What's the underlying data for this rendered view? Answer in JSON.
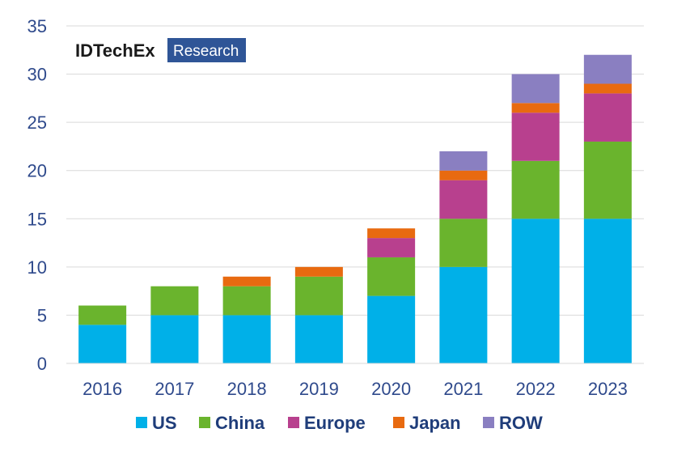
{
  "chart_data": {
    "type": "bar",
    "stacked": true,
    "title": "",
    "xlabel": "",
    "ylabel": "",
    "ylim": [
      0,
      35
    ],
    "yticks": [
      0,
      5,
      10,
      15,
      20,
      25,
      30,
      35
    ],
    "grid": true,
    "legend_position": "bottom",
    "categories": [
      "2016",
      "2017",
      "2018",
      "2019",
      "2020",
      "2021",
      "2022",
      "2023"
    ],
    "series": [
      {
        "name": "US",
        "color": "#00b0e8",
        "values": [
          4,
          5,
          5,
          5,
          7,
          10,
          15,
          15
        ]
      },
      {
        "name": "China",
        "color": "#6ab42d",
        "values": [
          2,
          3,
          3,
          4,
          4,
          5,
          6,
          8
        ]
      },
      {
        "name": "Europe",
        "color": "#b8408e",
        "values": [
          0,
          0,
          0,
          0,
          2,
          4,
          5,
          5
        ]
      },
      {
        "name": "Japan",
        "color": "#e86a10",
        "values": [
          0,
          0,
          1,
          1,
          1,
          1,
          1,
          1
        ]
      },
      {
        "name": "ROW",
        "color": "#8a7fc1",
        "values": [
          0,
          0,
          0,
          0,
          0,
          2,
          3,
          3
        ]
      }
    ]
  },
  "logo": {
    "brand": "IDTechEx",
    "sub": "Research"
  }
}
